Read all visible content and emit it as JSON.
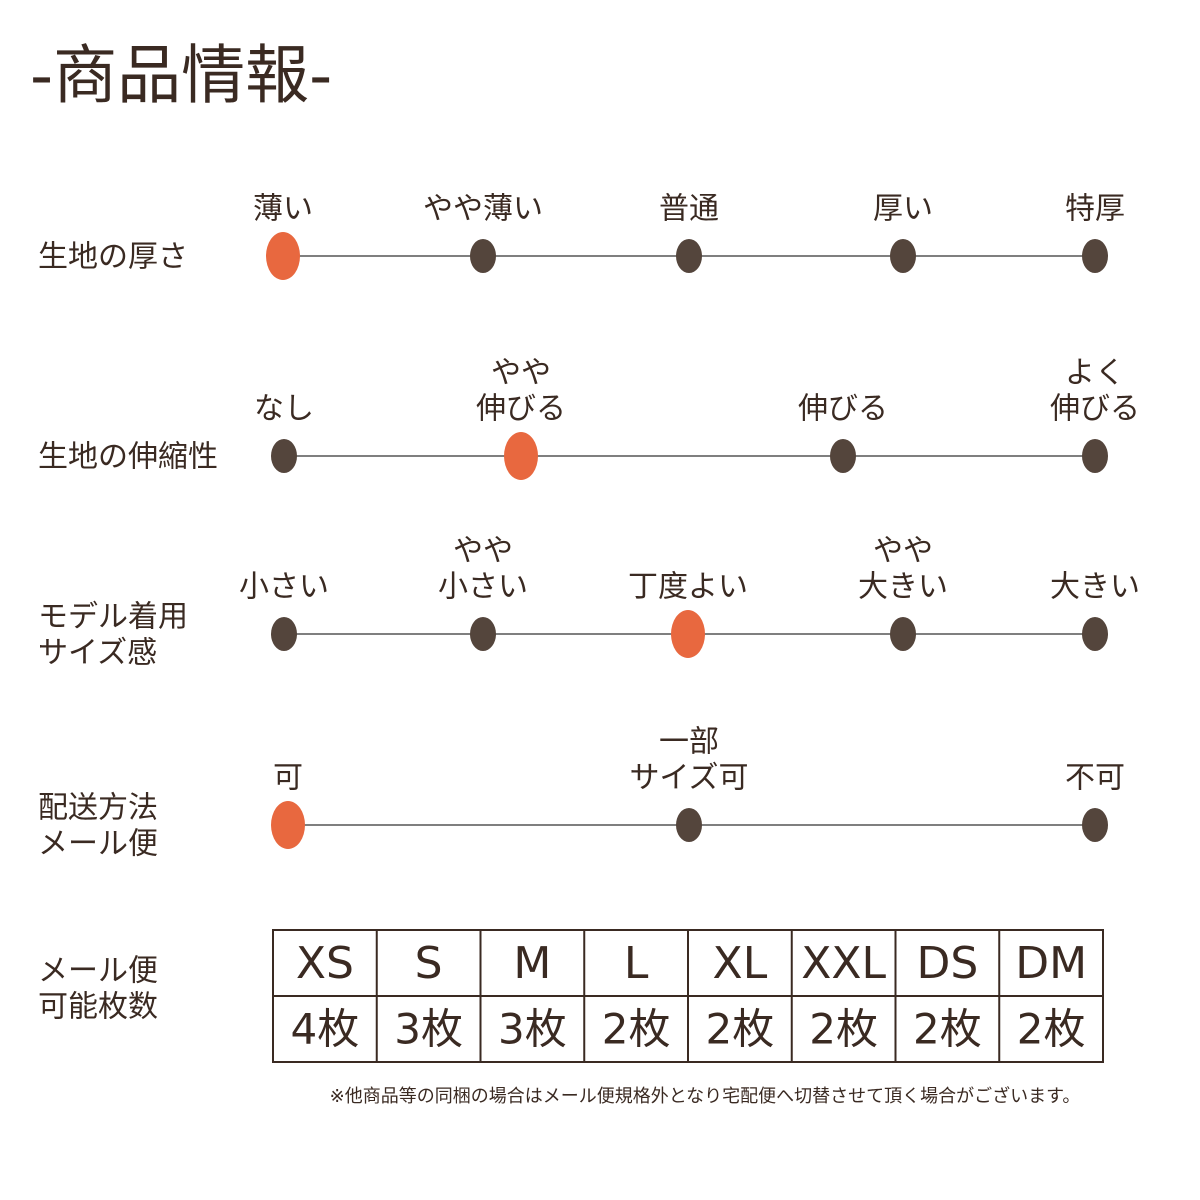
{
  "header": {
    "title": "-商品情報-"
  },
  "scales": [
    {
      "label": [
        "生地の厚さ"
      ],
      "options": [
        {
          "label": [
            "薄い"
          ],
          "selected": true
        },
        {
          "label": [
            "やや薄い"
          ],
          "selected": false
        },
        {
          "label": [
            "普通"
          ],
          "selected": false
        },
        {
          "label": [
            "厚い"
          ],
          "selected": false
        },
        {
          "label": [
            "特厚"
          ],
          "selected": false
        }
      ]
    },
    {
      "label": [
        "生地の伸縮性"
      ],
      "options": [
        {
          "label": [
            "なし"
          ],
          "selected": false
        },
        {
          "label": [
            "やや",
            "伸びる"
          ],
          "selected": true
        },
        {
          "label": [
            "伸びる"
          ],
          "selected": false
        },
        {
          "label": [
            "よく",
            "伸びる"
          ],
          "selected": false
        }
      ]
    },
    {
      "label": [
        "モデル着用",
        "サイズ感"
      ],
      "options": [
        {
          "label": [
            "小さい"
          ],
          "selected": false
        },
        {
          "label": [
            "やや",
            "小さい"
          ],
          "selected": false
        },
        {
          "label": [
            "丁度よい"
          ],
          "selected": true
        },
        {
          "label": [
            "やや",
            "大きい"
          ],
          "selected": false
        },
        {
          "label": [
            "大きい"
          ],
          "selected": false
        }
      ]
    },
    {
      "label": [
        "配送方法",
        "メール便"
      ],
      "options": [
        {
          "label": [
            "可"
          ],
          "selected": true
        },
        {
          "label": [
            "一部",
            "サイズ可"
          ],
          "selected": false
        },
        {
          "label": [
            "不可"
          ],
          "selected": false
        }
      ]
    }
  ],
  "table": {
    "label": [
      "メール便",
      "可能枚数"
    ],
    "header": [
      "XS",
      "S",
      "M",
      "L",
      "XL",
      "XXL",
      "DS",
      "DM"
    ],
    "rows": [
      [
        "4枚",
        "3枚",
        "3枚",
        "2枚",
        "2枚",
        "2枚",
        "2枚",
        "2枚"
      ]
    ]
  },
  "footnote": "※他商品等の同梱の場合はメール便規格外となり宅配便へ切替させて頂く場合がございます。"
}
